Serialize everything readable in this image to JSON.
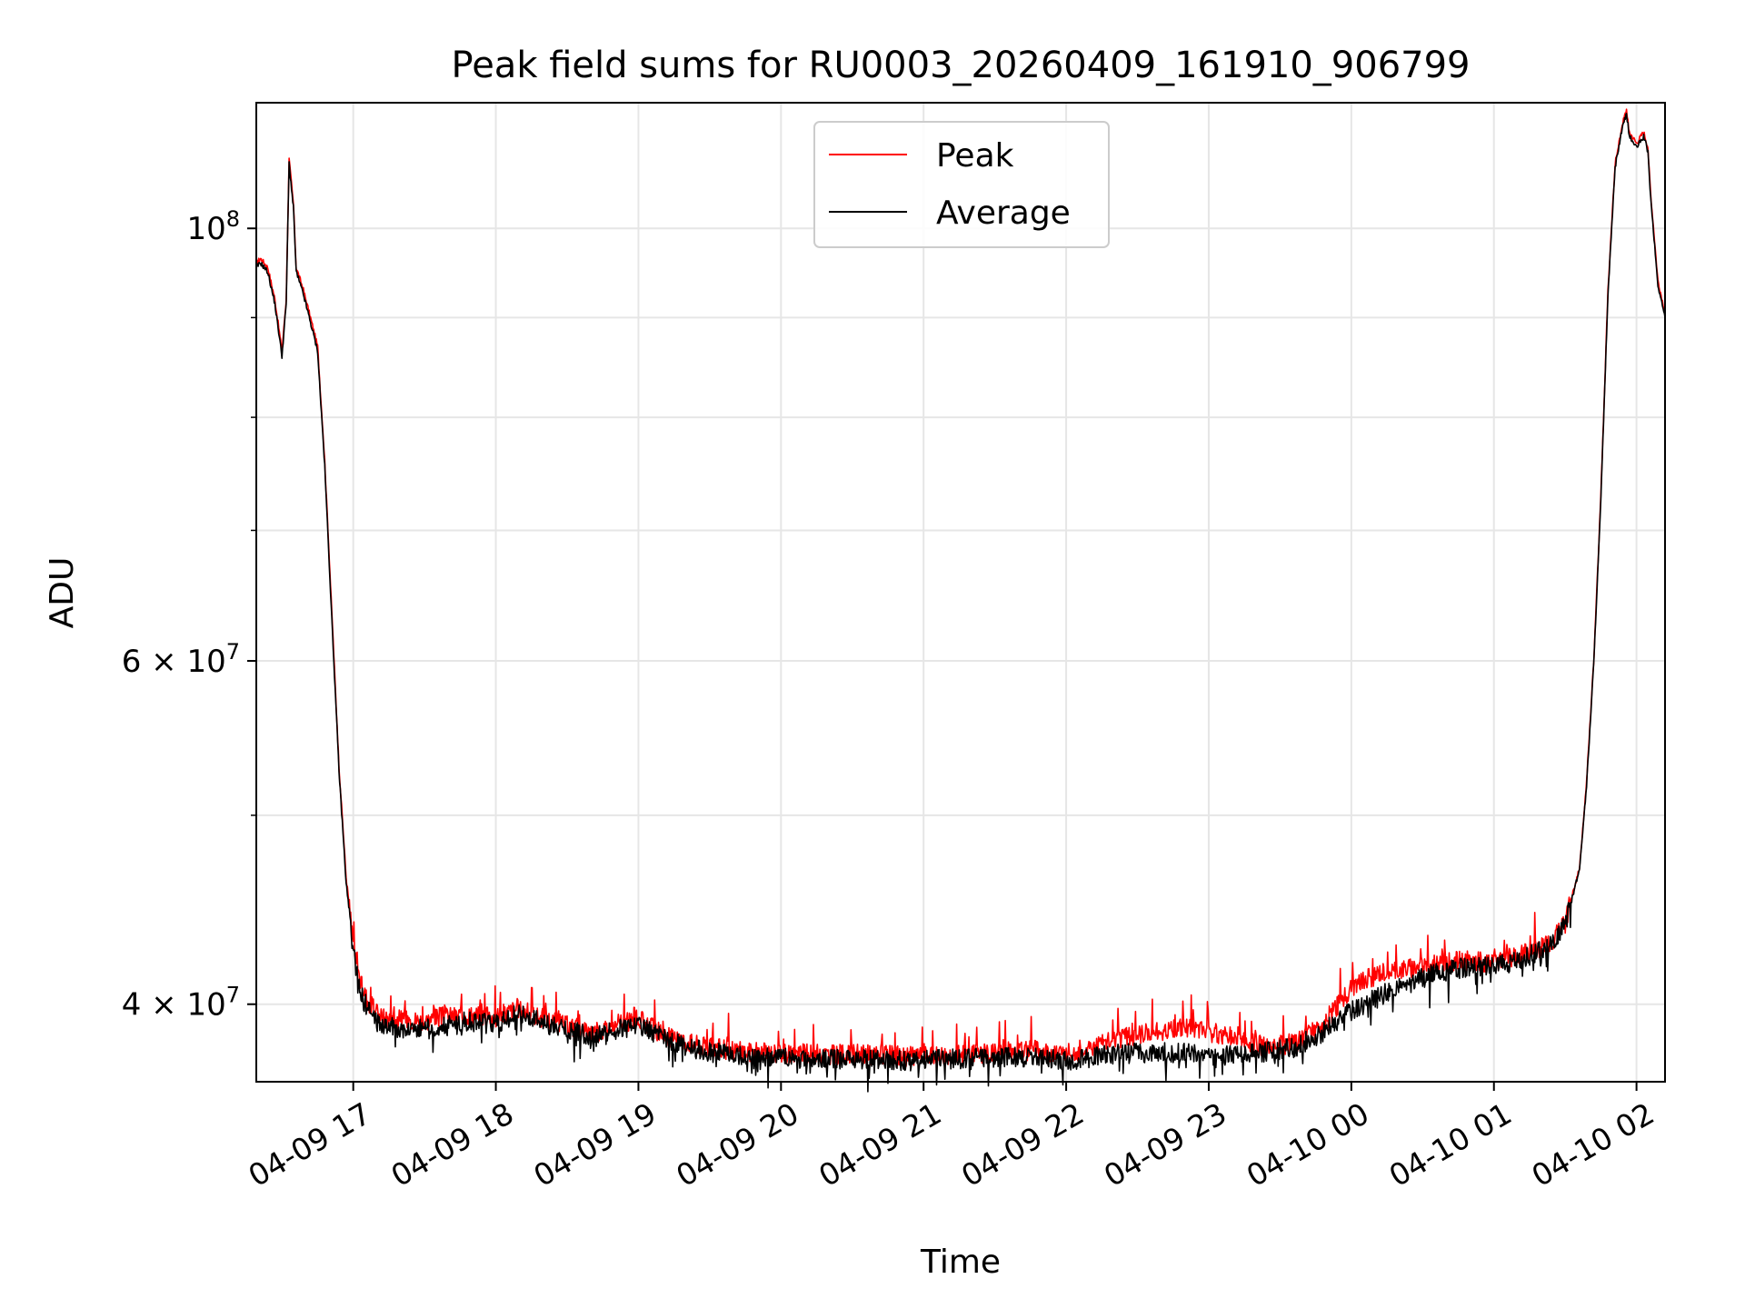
{
  "chart_data": {
    "type": "line",
    "title": "Peak field sums for RU0003_20260409_161910_906799",
    "xlabel": "Time",
    "ylabel": "ADU",
    "yscale": "log",
    "grid": true,
    "legend_position": "top-center",
    "x_tick_labels": [
      "04-09 17",
      "04-09 18",
      "04-09 19",
      "04-09 20",
      "04-09 21",
      "04-09 22",
      "04-09 23",
      "04-10 00",
      "04-10 01",
      "04-10 02"
    ],
    "x_tick_hours": [
      17,
      18,
      19,
      20,
      21,
      22,
      23,
      24,
      25,
      26
    ],
    "xlim_hours": [
      16.32,
      26.2
    ],
    "ylim": [
      36500000,
      116000000
    ],
    "y_major_ticks": [
      {
        "value": 40000000,
        "base": "4 × 10",
        "exp": "7"
      },
      {
        "value": 60000000,
        "base": "6 × 10",
        "exp": "7"
      },
      {
        "value": 100000000,
        "base": "10",
        "exp": "8"
      }
    ],
    "y_minor_ticks": [
      50000000,
      70000000,
      80000000,
      90000000
    ],
    "series": [
      {
        "name": "Peak",
        "color": "#ff0000",
        "x_hours": [
          16.32,
          16.35,
          16.4,
          16.45,
          16.5,
          16.53,
          16.55,
          16.58,
          16.6,
          16.62,
          16.65,
          16.7,
          16.75,
          16.8,
          16.85,
          16.9,
          16.95,
          17.0,
          17.05,
          17.1,
          17.15,
          17.2,
          17.3,
          17.4,
          17.5,
          17.6,
          17.8,
          18.0,
          18.15,
          18.3,
          18.5,
          18.7,
          19.0,
          19.2,
          19.5,
          19.8,
          20.0,
          20.3,
          20.6,
          20.9,
          21.2,
          21.5,
          21.8,
          22.0,
          22.3,
          22.6,
          22.8,
          23.0,
          23.2,
          23.4,
          23.6,
          23.8,
          24.0,
          24.2,
          24.4,
          24.6,
          24.8,
          25.0,
          25.2,
          25.4,
          25.5,
          25.6,
          25.65,
          25.7,
          25.75,
          25.8,
          25.85,
          25.9,
          25.93,
          25.95,
          26.0,
          26.05,
          26.08,
          26.1,
          26.15,
          26.2
        ],
        "values": [
          96000000,
          96500000,
          95500000,
          92000000,
          86500000,
          92000000,
          108500000,
          103000000,
          95500000,
          94500000,
          93000000,
          90000000,
          87000000,
          76000000,
          63500000,
          53000000,
          46500000,
          43000000,
          41000000,
          40200000,
          39700000,
          39400000,
          39300000,
          39300000,
          39200000,
          39400000,
          39500000,
          39400000,
          39800000,
          39400000,
          39000000,
          38700000,
          39300000,
          38500000,
          38000000,
          37800000,
          37750000,
          37700000,
          37700000,
          37600000,
          37700000,
          37800000,
          37900000,
          37700000,
          38300000,
          38700000,
          38900000,
          38700000,
          38500000,
          38000000,
          38200000,
          39000000,
          40800000,
          41500000,
          41700000,
          42000000,
          42100000,
          42000000,
          42400000,
          43000000,
          44000000,
          47000000,
          52000000,
          60000000,
          73000000,
          93000000,
          108000000,
          113000000,
          115000000,
          112000000,
          110500000,
          112000000,
          110000000,
          104000000,
          94000000,
          90500000
        ]
      },
      {
        "name": "Average",
        "color": "#000000",
        "x_hours": [
          16.32,
          16.35,
          16.4,
          16.45,
          16.5,
          16.53,
          16.55,
          16.58,
          16.6,
          16.62,
          16.65,
          16.7,
          16.75,
          16.8,
          16.85,
          16.9,
          16.95,
          17.0,
          17.05,
          17.1,
          17.15,
          17.2,
          17.3,
          17.4,
          17.5,
          17.6,
          17.8,
          18.0,
          18.15,
          18.3,
          18.5,
          18.7,
          19.0,
          19.2,
          19.5,
          19.8,
          20.0,
          20.3,
          20.6,
          20.9,
          21.2,
          21.5,
          21.8,
          22.0,
          22.3,
          22.6,
          22.8,
          23.0,
          23.2,
          23.4,
          23.6,
          23.8,
          24.0,
          24.2,
          24.4,
          24.6,
          24.8,
          25.0,
          25.2,
          25.4,
          25.5,
          25.6,
          25.65,
          25.7,
          25.75,
          25.8,
          25.85,
          25.9,
          25.93,
          25.95,
          26.0,
          26.05,
          26.08,
          26.1,
          26.15,
          26.2
        ],
        "values": [
          95500000,
          96000000,
          95000000,
          91500000,
          86000000,
          91500000,
          108000000,
          102500000,
          95000000,
          94000000,
          92500000,
          89500000,
          86500000,
          75500000,
          63000000,
          52700000,
          46200000,
          42600000,
          40500000,
          39800000,
          39300000,
          39000000,
          38900000,
          38900000,
          38800000,
          39000000,
          39200000,
          39100000,
          39600000,
          39200000,
          38800000,
          38500000,
          39100000,
          38300000,
          37800000,
          37600000,
          37550000,
          37500000,
          37500000,
          37400000,
          37500000,
          37550000,
          37600000,
          37400000,
          37700000,
          37800000,
          37800000,
          37600000,
          37700000,
          37800000,
          38000000,
          38700000,
          39700000,
          40400000,
          41000000,
          41500000,
          41800000,
          41800000,
          42200000,
          42900000,
          43900000,
          46900000,
          51800000,
          59800000,
          72500000,
          92500000,
          107500000,
          112500000,
          114500000,
          111500000,
          110000000,
          111500000,
          109500000,
          103500000,
          93500000,
          90000000
        ]
      }
    ]
  }
}
